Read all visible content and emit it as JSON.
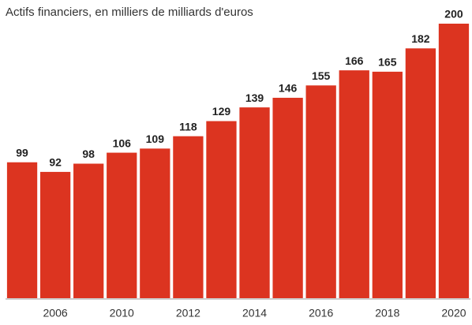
{
  "chart_data": {
    "type": "bar",
    "title": "Actifs financiers, en milliers de milliards d'euros",
    "categories": [
      null,
      "2006",
      null,
      "2010",
      null,
      "2012",
      null,
      "2014",
      null,
      "2016",
      null,
      "2018",
      null,
      "2020"
    ],
    "values": [
      99,
      92,
      98,
      106,
      109,
      118,
      129,
      139,
      146,
      155,
      166,
      165,
      182,
      200
    ],
    "color": "#dc3420",
    "ylim": [
      0,
      200
    ],
    "data_labels": true
  }
}
